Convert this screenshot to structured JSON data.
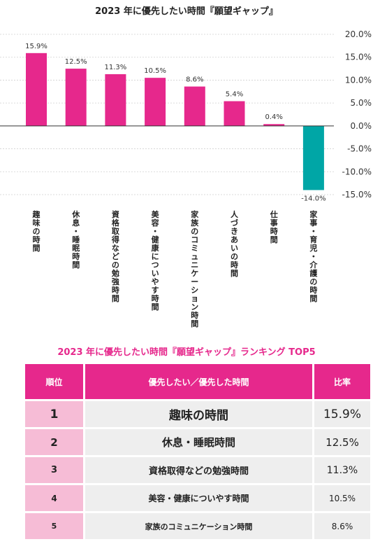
{
  "chart_data": {
    "type": "bar",
    "title": "2023 年に優先したい時間『願望ギャップ』",
    "categories": [
      "趣味の時間",
      "休息・睡眠時間",
      "資格取得などの勉強時間",
      "美容・健康についやす時間",
      "家族のコミュニケーション時間",
      "人づきあいの時間",
      "仕事時間",
      "家事・育児・介護の時間"
    ],
    "values": [
      15.9,
      12.5,
      11.3,
      10.5,
      8.6,
      5.4,
      0.4,
      -14.0
    ],
    "value_labels": [
      "15.9%",
      "12.5%",
      "11.3%",
      "10.5%",
      "8.6%",
      "5.4%",
      "0.4%",
      "-14.0%"
    ],
    "ylim": [
      -15,
      20
    ],
    "yticks": [
      20,
      15,
      10,
      5,
      0,
      -5,
      -10,
      -15
    ],
    "ytick_labels": [
      "20.0%",
      "15.0%",
      "10.0%",
      "5.0%",
      "0.0%",
      "-5.0%",
      "-10.0%",
      "-15.0%"
    ],
    "grid": true,
    "colors": {
      "positive": "#e6288c",
      "negative": "#00a6a6"
    }
  },
  "ranking": {
    "title": "2023 年に優先したい時間『願望ギャップ』ランキング TOP5",
    "headers": {
      "rank": "順位",
      "item": "優先したい／優先した時間",
      "rate": "比率"
    },
    "rows": [
      {
        "rank": "1",
        "item": "趣味の時間",
        "rate": "15.9%"
      },
      {
        "rank": "2",
        "item": "休息・睡眠時間",
        "rate": "12.5%"
      },
      {
        "rank": "3",
        "item": "資格取得などの勉強時間",
        "rate": "11.3%"
      },
      {
        "rank": "4",
        "item": "美容・健康についやす時間",
        "rate": "10.5%"
      },
      {
        "rank": "5",
        "item": "家族のコミュニケーション時間",
        "rate": "8.6%"
      }
    ]
  }
}
